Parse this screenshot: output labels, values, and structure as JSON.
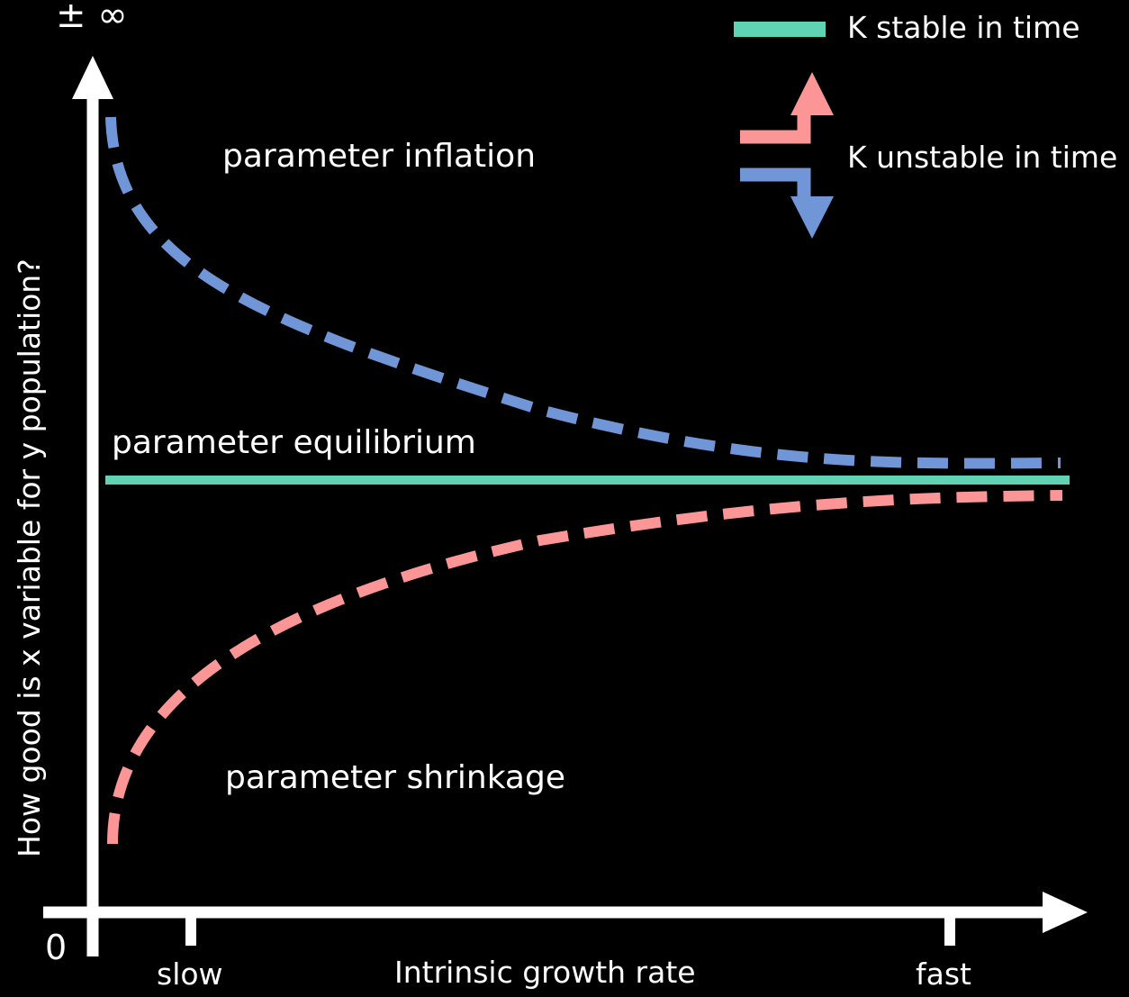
{
  "labels": {
    "top_symbol": "± ∞",
    "origin": "0",
    "y_axis": "How good is x variable for y population?",
    "x_axis": "Intrinsic growth rate",
    "x_tick_slow": "slow",
    "x_tick_fast": "fast",
    "region_inflation": "parameter inflation",
    "region_equilibrium": "parameter equilibrium",
    "region_shrinkage": "parameter shrinkage"
  },
  "legend": {
    "stable": "K stable in time",
    "unstable": "K unstable in time"
  },
  "colors": {
    "background": "#000000",
    "axes": "#ffffff",
    "equilibrium": "#5fd3b3",
    "inflation": "#7096d8",
    "shrinkage": "#fc9696"
  }
}
